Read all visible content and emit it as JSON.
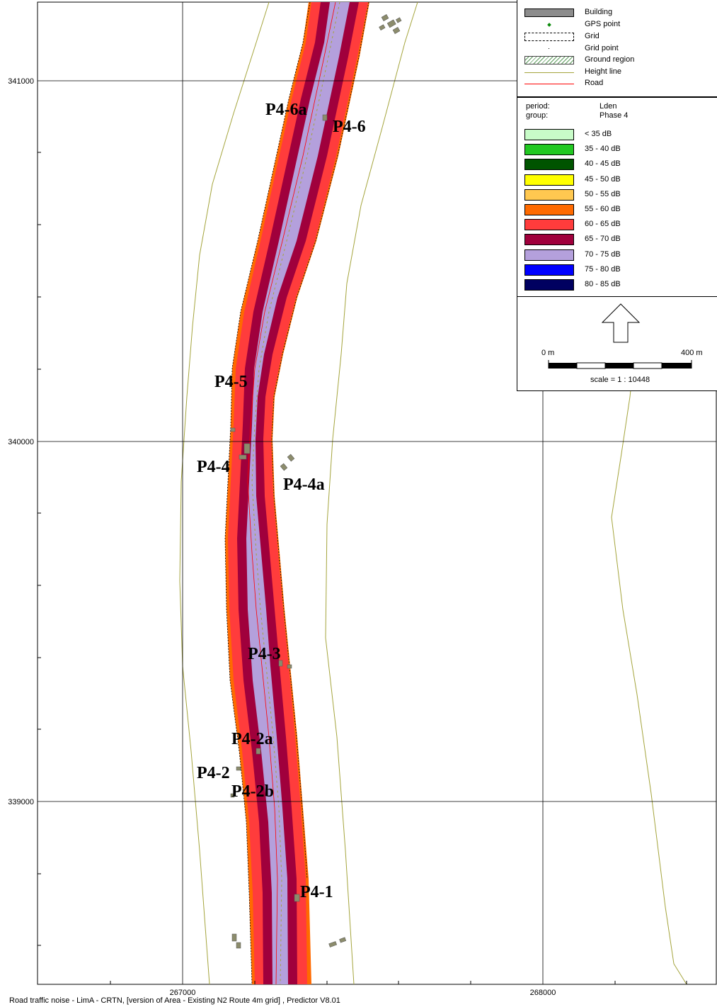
{
  "map": {
    "x_ticks": [
      "267000",
      "268000"
    ],
    "y_ticks": [
      "341000",
      "340000",
      "339000"
    ],
    "point_labels": [
      "P4-6a",
      "P4-6",
      "P4-5",
      "P4-4",
      "P4-4a",
      "P4-3",
      "P4-2a",
      "P4-2",
      "P4-2b",
      "P4-1"
    ]
  },
  "legend": {
    "items": [
      {
        "label": "Building",
        "symbol": "building"
      },
      {
        "label": "GPS point",
        "symbol": "gps-point"
      },
      {
        "label": "Grid",
        "symbol": "grid"
      },
      {
        "label": "Grid point",
        "symbol": "grid-point"
      },
      {
        "label": "Ground region",
        "symbol": "ground-region"
      },
      {
        "label": "Height line",
        "symbol": "height-line"
      },
      {
        "label": "Road",
        "symbol": "road"
      }
    ],
    "period_label": "period:",
    "period_value": "Lden",
    "group_label": "group:",
    "group_value": "Phase 4",
    "bands": [
      {
        "label": "< 35 dB",
        "color": "#c8fcc8"
      },
      {
        "label": "35 - 40 dB",
        "color": "#22c822"
      },
      {
        "label": "40 - 45 dB",
        "color": "#005400"
      },
      {
        "label": "45 - 50 dB",
        "color": "#ffff00"
      },
      {
        "label": "50 - 55 dB",
        "color": "#ffc850"
      },
      {
        "label": "55 - 60 dB",
        "color": "#ff6a00"
      },
      {
        "label": "60 - 65 dB",
        "color": "#ff3c3c"
      },
      {
        "label": "65 - 70 dB",
        "color": "#a0003c"
      },
      {
        "label": "70 - 75 dB",
        "color": "#b4a0dc"
      },
      {
        "label": "75 - 80 dB",
        "color": "#0000ff"
      },
      {
        "label": "80 - 85 dB",
        "color": "#000060"
      }
    ],
    "scale_start": "0 m",
    "scale_end": "400 m",
    "scale_text": "scale = 1 : 10448"
  },
  "colors": {
    "height_line": "#a4a43c",
    "road": "#ff0000",
    "grid_line": "#000000",
    "building": "#8c8c6c"
  },
  "footer": "Road traffic noise - LimA - CRTN, [version of Area - Existing N2 Route 4m grid] , Predictor V8.01"
}
